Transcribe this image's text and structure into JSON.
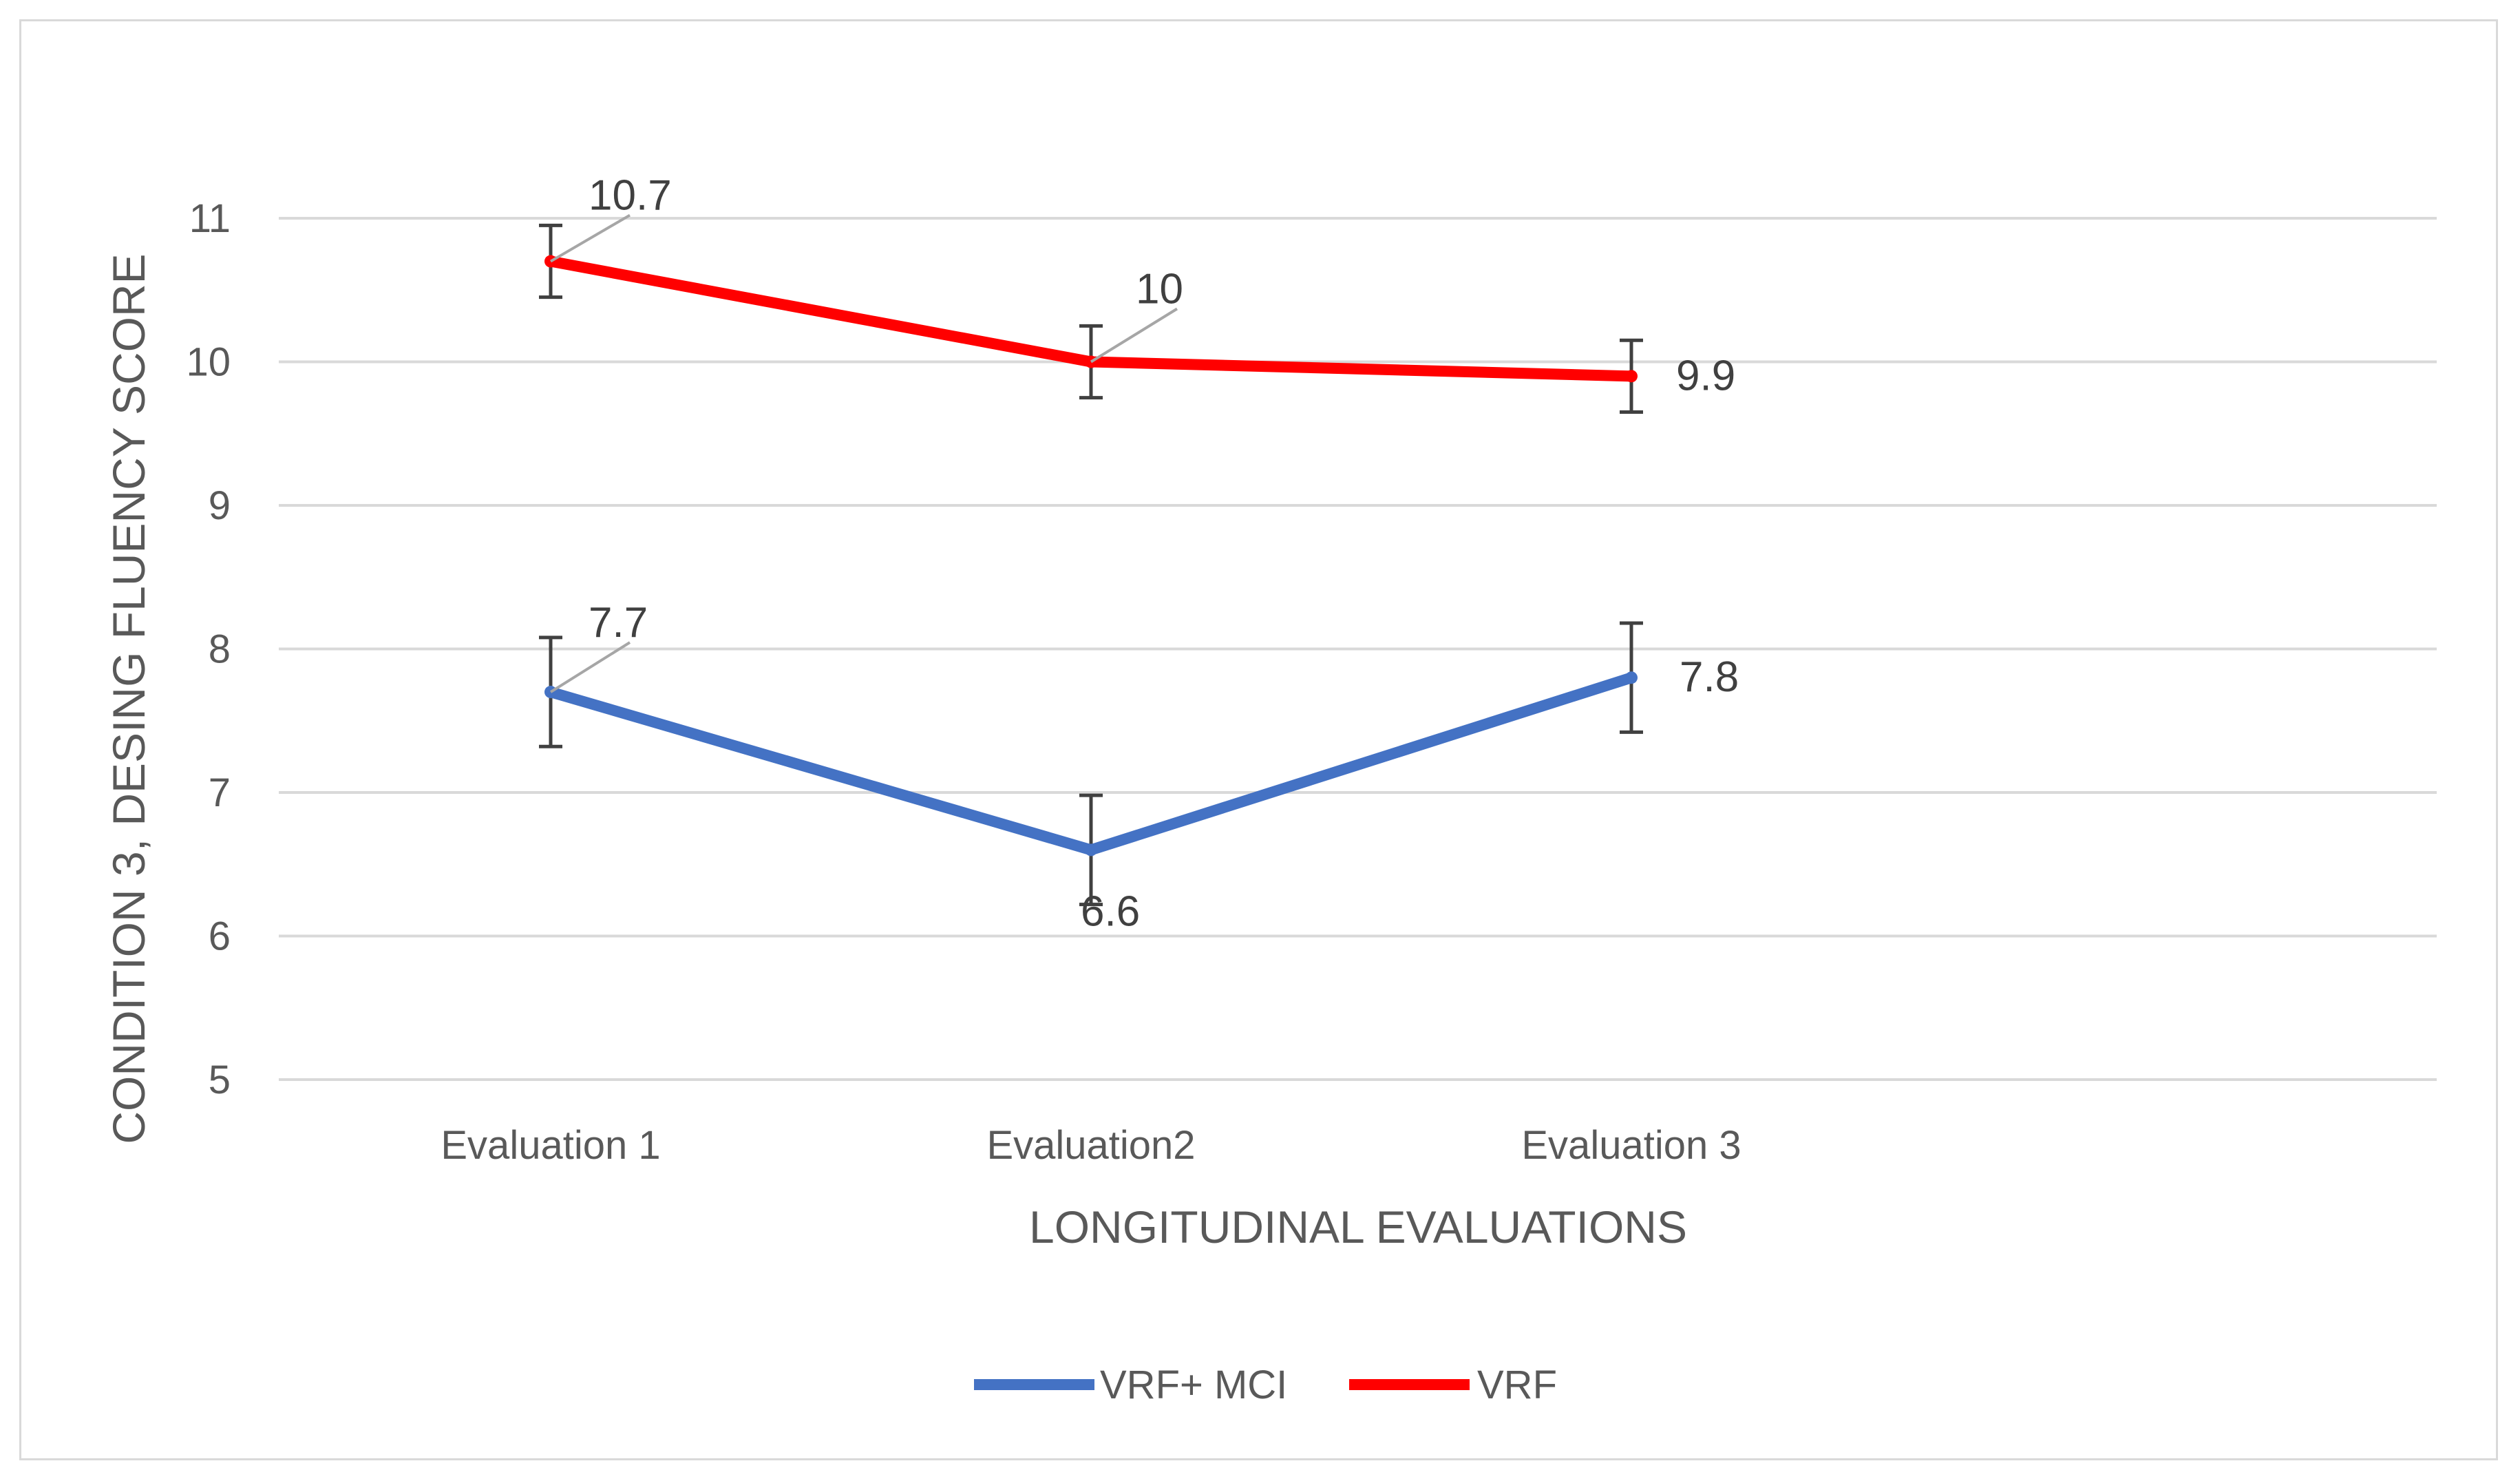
{
  "chart_data": {
    "type": "line",
    "title": "",
    "xlabel": "LONGITUDINAL EVALUATIONS",
    "ylabel": "CONDITION 3, DESING FLUENCY SCORE",
    "categories": [
      "Evaluation 1",
      "Evaluation2",
      "Evaluation 3"
    ],
    "ylim": [
      5,
      11
    ],
    "yticks": [
      5,
      6,
      7,
      8,
      9,
      10,
      11
    ],
    "grid": true,
    "legend": "bottom",
    "series": [
      {
        "name": "VRF+ MCI",
        "color": "#4472c4",
        "values": [
          7.7,
          6.6,
          7.8
        ],
        "error": [
          0.38,
          0.38,
          0.38
        ],
        "labels": [
          "7.7",
          "6.6",
          "7.8"
        ]
      },
      {
        "name": "VRF",
        "color": "#ff0000",
        "values": [
          10.7,
          10,
          9.9
        ],
        "error": [
          0.25,
          0.25,
          0.25
        ],
        "labels": [
          "10.7",
          "10",
          "9.9"
        ]
      }
    ]
  }
}
